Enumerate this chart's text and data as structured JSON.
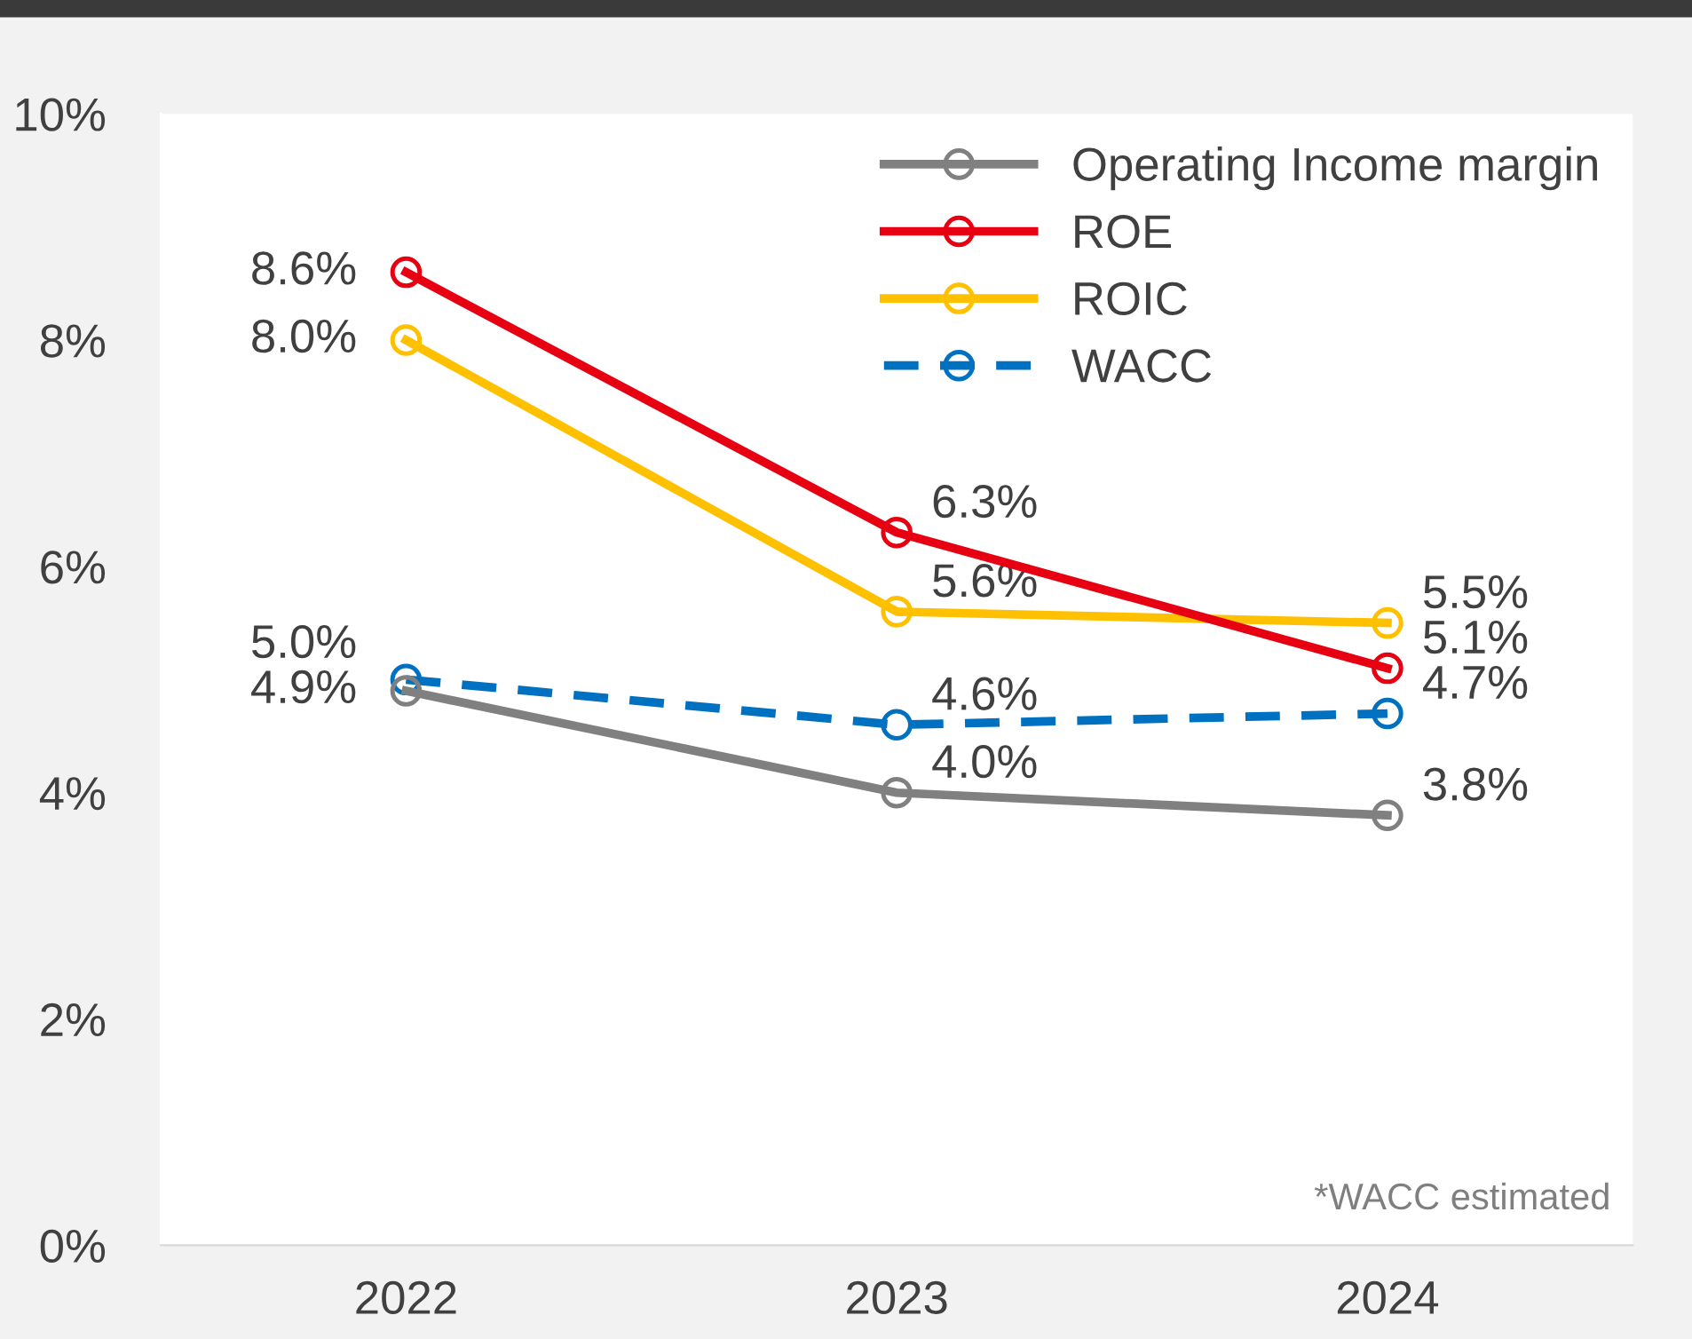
{
  "chart_data": {
    "type": "line",
    "categories": [
      "2022",
      "2023",
      "2024"
    ],
    "series": [
      {
        "name": "Operating Income margin",
        "color": "#808080",
        "values": [
          4.9,
          4.0,
          3.8
        ],
        "value_labels": [
          "4.9%",
          "4.0%",
          "3.8%"
        ]
      },
      {
        "name": "ROE",
        "color": "#e60012",
        "values": [
          8.6,
          6.3,
          5.1
        ],
        "value_labels": [
          "8.6%",
          "6.3%",
          "5.1%"
        ]
      },
      {
        "name": "ROIC",
        "color": "#ffc000",
        "values": [
          8.0,
          5.6,
          5.5
        ],
        "value_labels": [
          "8.0%",
          "5.6%",
          "5.5%"
        ]
      },
      {
        "name": "WACC",
        "color": "#0070c0",
        "values": [
          5.0,
          4.6,
          4.7
        ],
        "value_labels": [
          "5.0%",
          "4.6%",
          "4.7%"
        ],
        "line_style": "dashed"
      }
    ],
    "ylim": [
      0,
      10
    ],
    "yticks": [
      {
        "value": 0,
        "label": "0%"
      },
      {
        "value": 2,
        "label": "2%"
      },
      {
        "value": 4,
        "label": "4%"
      },
      {
        "value": 6,
        "label": "6%"
      },
      {
        "value": 8,
        "label": "8%"
      },
      {
        "value": 10,
        "label": "10%"
      }
    ],
    "marker": "circle",
    "line_style": "solid",
    "grid": false,
    "legend": "top right",
    "annotations": [
      "*WACC estimated"
    ]
  }
}
